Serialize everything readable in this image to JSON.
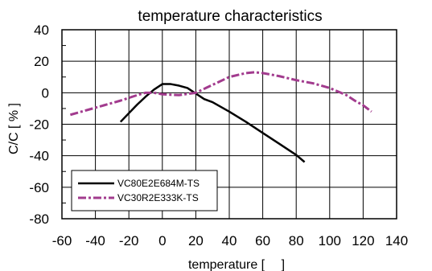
{
  "chart_data": {
    "type": "line",
    "title": "temperature characteristics",
    "xlabel": "temperature [　 ]",
    "ylabel": "C/C [ % ]",
    "xlim": [
      -60,
      140
    ],
    "ylim": [
      -80,
      40
    ],
    "xticks": [
      -60,
      -40,
      -20,
      0,
      20,
      40,
      60,
      80,
      100,
      120,
      140
    ],
    "yticks": [
      -80,
      -60,
      -40,
      -20,
      0,
      20,
      40
    ],
    "grid": true,
    "legend_position": "bottom-left",
    "series": [
      {
        "name": "VC80E2E684M-TS",
        "color": "#000000",
        "dash": "solid",
        "x": [
          -25,
          -20,
          -15,
          -10,
          -5,
          0,
          5,
          10,
          15,
          20,
          25,
          30,
          40,
          50,
          60,
          70,
          80,
          85
        ],
        "y": [
          -18.5,
          -13,
          -7.5,
          -2.5,
          2,
          5.5,
          5.5,
          4.5,
          3,
          -0.5,
          -4,
          -6,
          -12,
          -18.5,
          -25.5,
          -32.5,
          -39.5,
          -44
        ]
      },
      {
        "name": "VC30R2E333K-TS",
        "color": "#a23b8e",
        "dash": "dashdot",
        "x": [
          -55,
          -45,
          -35,
          -25,
          -15,
          -10,
          -5,
          0,
          10,
          20,
          30,
          40,
          50,
          55,
          60,
          70,
          80,
          90,
          100,
          110,
          115,
          120,
          125
        ],
        "y": [
          -14,
          -11,
          -8,
          -5,
          -1.5,
          0,
          0,
          -1,
          -1.5,
          0,
          5,
          10,
          12.5,
          13,
          12.5,
          10.5,
          8,
          6,
          3,
          -1.5,
          -5,
          -8,
          -12
        ]
      }
    ]
  }
}
